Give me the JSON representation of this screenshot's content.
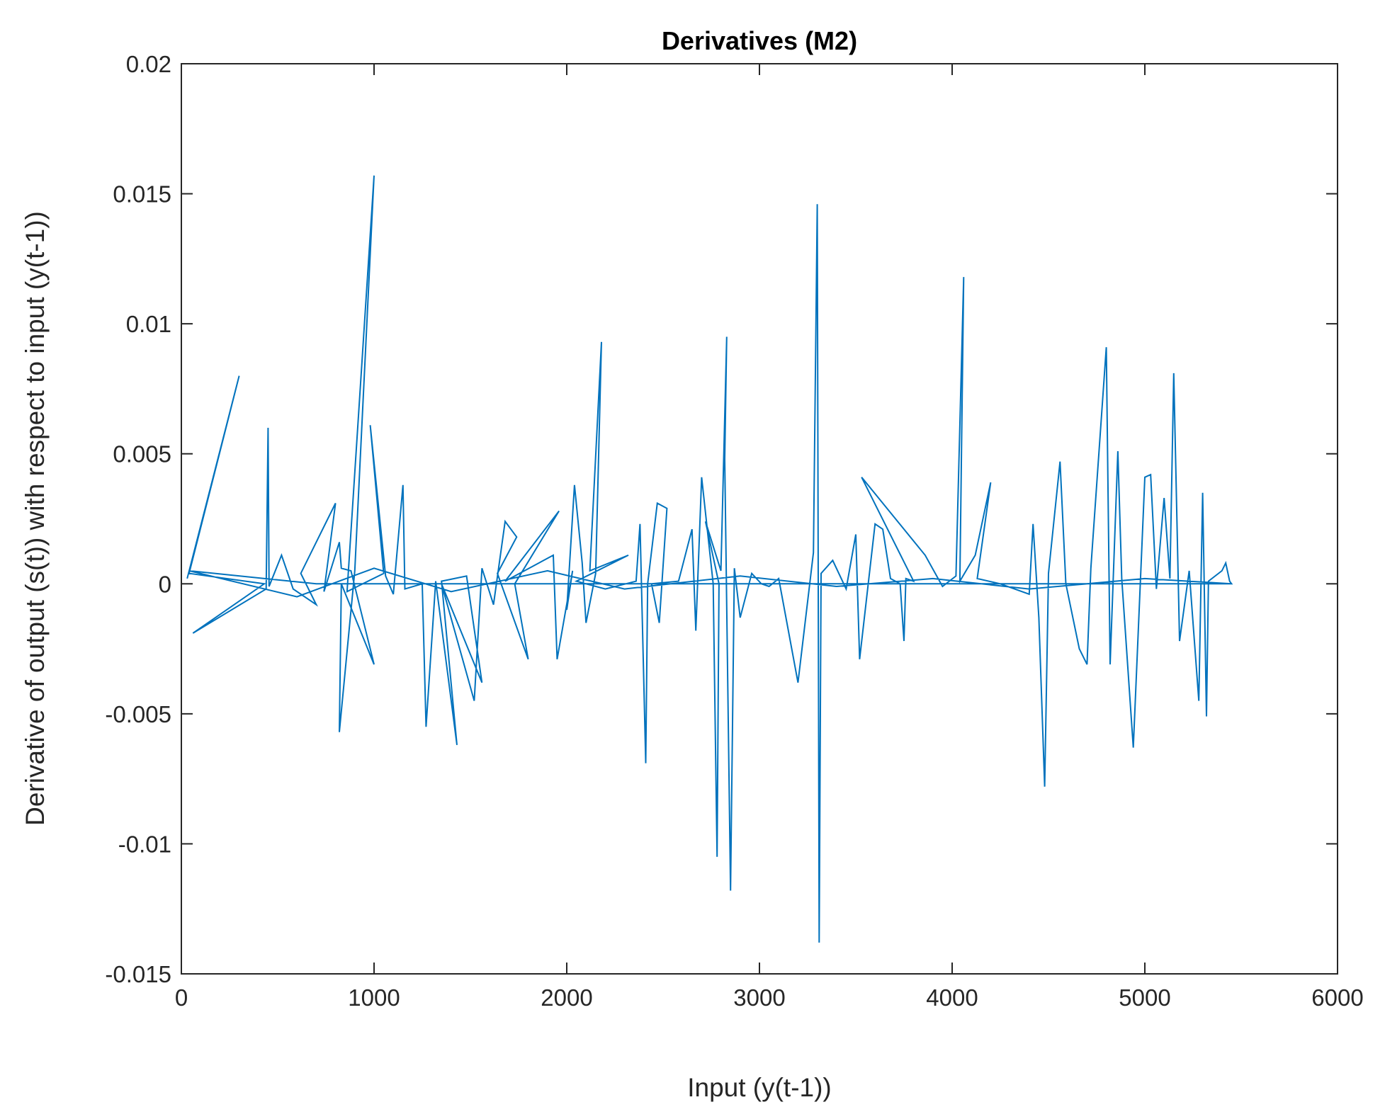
{
  "chart_data": {
    "type": "line",
    "title": "Derivatives (M2)",
    "xlabel": "Input (y(t-1))",
    "ylabel": "Derivative of output (s(t)) with respect to input (y(t-1))",
    "xlim": [
      0,
      6000
    ],
    "ylim": [
      -0.015,
      0.02
    ],
    "xticks": [
      0,
      1000,
      2000,
      3000,
      4000,
      5000,
      6000
    ],
    "xtick_labels": [
      "0",
      "1000",
      "2000",
      "3000",
      "4000",
      "5000",
      "6000"
    ],
    "yticks": [
      -0.015,
      -0.01,
      -0.005,
      0,
      0.005,
      0.01,
      0.015,
      0.02
    ],
    "ytick_labels": [
      "-0.015",
      "-0.01",
      "-0.005",
      "0",
      "0.005",
      "0.01",
      "0.015",
      "0.02"
    ],
    "grid": false,
    "legend": "none",
    "series": [
      {
        "color": "#0072bd",
        "points": [
          [
            30,
            0.0002
          ],
          [
            300,
            0.008
          ],
          [
            40,
            0.0004
          ],
          [
            430,
            0.0
          ],
          [
            60,
            -0.0019
          ],
          [
            440,
            -0.0002
          ],
          [
            450,
            0.006
          ],
          [
            455,
            -0.0001
          ],
          [
            520,
            0.0011
          ],
          [
            580,
            -0.0002
          ],
          [
            700,
            -0.0008
          ],
          [
            620,
            0.0004
          ],
          [
            800,
            0.0031
          ],
          [
            740,
            -0.0003
          ],
          [
            820,
            0.0016
          ],
          [
            830,
            0.0006
          ],
          [
            880,
            0.0005
          ],
          [
            1000,
            -0.0031
          ],
          [
            830,
            0.0
          ],
          [
            820,
            -0.0057
          ],
          [
            900,
            0.0005
          ],
          [
            1000,
            0.0157
          ],
          [
            860,
            -0.0003
          ],
          [
            1050,
            0.0004
          ],
          [
            980,
            0.0061
          ],
          [
            1060,
            0.0003
          ],
          [
            1100,
            -0.0004
          ],
          [
            1150,
            0.0038
          ],
          [
            1160,
            -0.0002
          ],
          [
            1250,
            0.0
          ],
          [
            1270,
            -0.0055
          ],
          [
            1320,
            0.0001
          ],
          [
            1430,
            -0.0062
          ],
          [
            1350,
            0.0001
          ],
          [
            1480,
            0.0003
          ],
          [
            1560,
            -0.0038
          ],
          [
            1350,
            0.0
          ],
          [
            1520,
            -0.0045
          ],
          [
            1560,
            0.0006
          ],
          [
            1620,
            -0.0008
          ],
          [
            1680,
            0.0024
          ],
          [
            1740,
            0.0018
          ],
          [
            1640,
            0.0004
          ],
          [
            1800,
            -0.0029
          ],
          [
            1730,
            0.0
          ],
          [
            1960,
            0.0028
          ],
          [
            1680,
            0.0001
          ],
          [
            1930,
            0.0011
          ],
          [
            1950,
            -0.0029
          ],
          [
            2030,
            0.0005
          ],
          [
            2000,
            -0.001
          ],
          [
            2040,
            0.0038
          ],
          [
            2080,
            0.0008
          ],
          [
            2100,
            -0.0015
          ],
          [
            2150,
            0.0004
          ],
          [
            2180,
            0.0093
          ],
          [
            2120,
            0.0005
          ],
          [
            2320,
            0.0011
          ],
          [
            2050,
            0.0001
          ],
          [
            2200,
            -0.0002
          ],
          [
            2360,
            0.0001
          ],
          [
            2380,
            0.0023
          ],
          [
            2410,
            -0.0069
          ],
          [
            2420,
            0.0
          ],
          [
            2470,
            0.0031
          ],
          [
            2520,
            0.0029
          ],
          [
            2480,
            -0.0015
          ],
          [
            2440,
            0.0
          ],
          [
            2580,
            0.0001
          ],
          [
            2650,
            0.0021
          ],
          [
            2670,
            -0.0018
          ],
          [
            2700,
            0.0041
          ],
          [
            2760,
            0.0
          ],
          [
            2780,
            -0.0105
          ],
          [
            2790,
            0.0
          ],
          [
            2720,
            0.0024
          ],
          [
            2800,
            0.0005
          ],
          [
            2830,
            0.0095
          ],
          [
            2820,
            0.0048
          ],
          [
            2850,
            -0.0118
          ],
          [
            2870,
            0.0006
          ],
          [
            2900,
            -0.0013
          ],
          [
            2960,
            0.0004
          ],
          [
            3010,
            0.0
          ],
          [
            3050,
            -0.0001
          ],
          [
            3100,
            0.0002
          ],
          [
            3200,
            -0.0038
          ],
          [
            3280,
            0.0012
          ],
          [
            3300,
            0.0146
          ],
          [
            3310,
            -0.0138
          ],
          [
            3320,
            0.0004
          ],
          [
            3380,
            0.0009
          ],
          [
            3450,
            -0.0002
          ],
          [
            3500,
            0.0019
          ],
          [
            3520,
            -0.0029
          ],
          [
            3600,
            0.0023
          ],
          [
            3640,
            0.0021
          ],
          [
            3680,
            0.0002
          ],
          [
            3730,
            0.0
          ],
          [
            3750,
            -0.0022
          ],
          [
            3760,
            0.0002
          ],
          [
            3800,
            0.0001
          ],
          [
            3530,
            0.0041
          ],
          [
            3860,
            0.0011
          ],
          [
            3950,
            -0.0001
          ],
          [
            4020,
            0.0003
          ],
          [
            4060,
            0.0118
          ],
          [
            4040,
            0.0001
          ],
          [
            4120,
            0.0011
          ],
          [
            4200,
            0.0039
          ],
          [
            4130,
            0.0002
          ],
          [
            4250,
            0.0
          ],
          [
            4400,
            -0.0004
          ],
          [
            4420,
            0.0023
          ],
          [
            4450,
            -0.0013
          ],
          [
            4480,
            -0.0078
          ],
          [
            4500,
            0.0004
          ],
          [
            4560,
            0.0047
          ],
          [
            4590,
            0.0
          ],
          [
            4660,
            -0.0025
          ],
          [
            4700,
            -0.0031
          ],
          [
            4720,
            0.0006
          ],
          [
            4800,
            0.0091
          ],
          [
            4820,
            -0.0031
          ],
          [
            4860,
            0.0051
          ],
          [
            4880,
            0.0002
          ],
          [
            4940,
            -0.0063
          ],
          [
            5000,
            0.0041
          ],
          [
            5030,
            0.0042
          ],
          [
            5060,
            -0.0002
          ],
          [
            5100,
            0.0033
          ],
          [
            5130,
            0.0002
          ],
          [
            5150,
            0.0081
          ],
          [
            5180,
            -0.0022
          ],
          [
            5230,
            0.0005
          ],
          [
            5280,
            -0.0045
          ],
          [
            5300,
            0.0035
          ],
          [
            5320,
            -0.0051
          ],
          [
            5330,
            0.0001
          ],
          [
            5400,
            0.0005
          ],
          [
            5420,
            0.0008
          ],
          [
            5440,
            0.0001
          ],
          [
            5450,
            0.0
          ],
          [
            5200,
            0.0
          ],
          [
            4700,
            0.0
          ],
          [
            4200,
            0.0
          ],
          [
            3700,
            0.0
          ],
          [
            3200,
            0.0
          ],
          [
            2700,
            0.0
          ],
          [
            2200,
            0.0
          ],
          [
            1700,
            0.0
          ],
          [
            1200,
            0.0
          ],
          [
            700,
            0.0
          ],
          [
            40,
            0.0005
          ],
          [
            600,
            -0.0005
          ],
          [
            1000,
            0.0006
          ],
          [
            1400,
            -0.0003
          ],
          [
            1900,
            0.0005
          ],
          [
            2300,
            -0.0002
          ],
          [
            2900,
            0.0003
          ],
          [
            3400,
            -0.0001
          ],
          [
            3900,
            0.0002
          ],
          [
            4400,
            -0.0002
          ],
          [
            5000,
            0.0002
          ],
          [
            5450,
            0.0
          ]
        ]
      }
    ]
  }
}
